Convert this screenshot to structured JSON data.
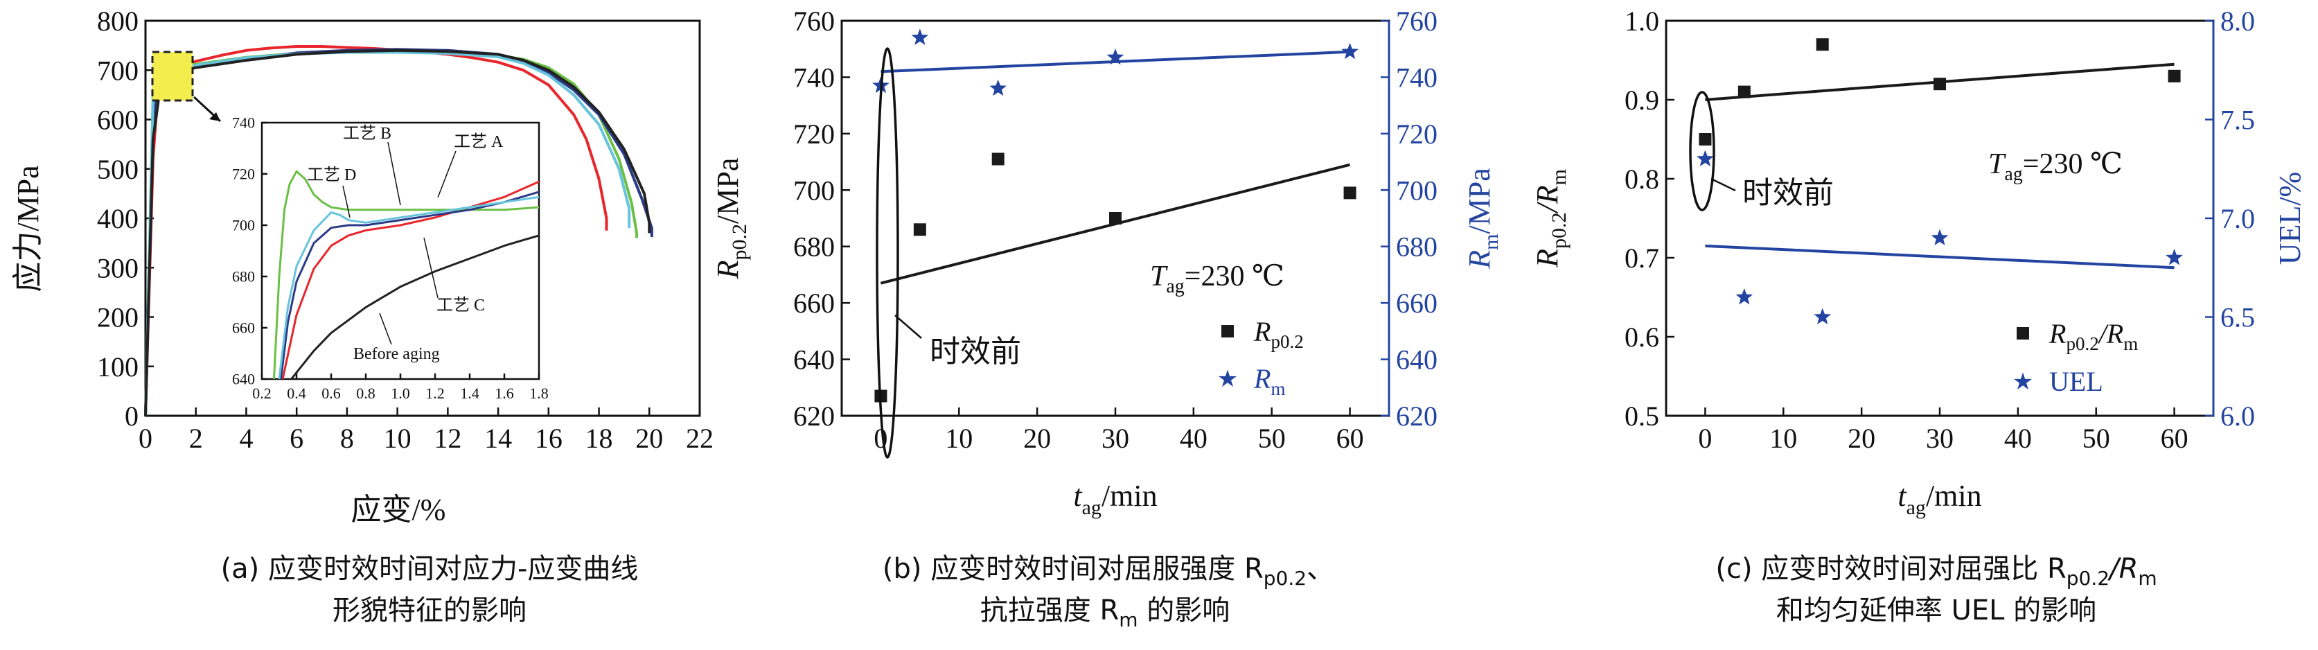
{
  "colors": {
    "black": "#1a1a1a",
    "blue": "#2344a0",
    "highlight": "#f3ee4e",
    "process_A": "#e8262b",
    "process_B": "#6bbf45",
    "process_C": "#2b3a86",
    "process_D": "#66c4dc",
    "before_aging": "#222222"
  },
  "chart_data": [
    {
      "id": "a",
      "type": "line",
      "xlabel": "应变/%",
      "ylabel": "应力/MPa",
      "xlim": [
        0,
        22
      ],
      "ylim": [
        0,
        800
      ],
      "xticks": [
        "0",
        "2",
        "4",
        "6",
        "8",
        "10",
        "12",
        "14",
        "16",
        "18",
        "20",
        "22"
      ],
      "yticks": [
        "0",
        "100",
        "200",
        "300",
        "400",
        "500",
        "600",
        "700",
        "800"
      ],
      "caption_line1": "(a) 应变时效时间对应力-应变曲线",
      "caption_line2": "形貌特征的影响",
      "series": [
        {
          "name": "工艺 A",
          "color_key": "process_A",
          "x": [
            0,
            0.3,
            0.5,
            0.8,
            1.2,
            2,
            3,
            4,
            5,
            6,
            7,
            8,
            9,
            10,
            11,
            12,
            13,
            14,
            15,
            16,
            17,
            17.5,
            18,
            18.3,
            18.3
          ],
          "y": [
            0,
            520,
            660,
            700,
            706,
            718,
            730,
            740,
            745,
            748,
            748,
            746,
            744,
            741,
            737,
            732,
            725,
            716,
            700,
            670,
            610,
            560,
            480,
            400,
            375
          ]
        },
        {
          "name": "工艺 B",
          "color_key": "process_B",
          "x": [
            0,
            0.3,
            0.4,
            0.5,
            0.7,
            1,
            2,
            4,
            6,
            8,
            10,
            12,
            14,
            15,
            16,
            17,
            18,
            18.8,
            19.3,
            19.5,
            19.5
          ],
          "y": [
            0,
            650,
            720,
            712,
            706,
            705,
            712,
            726,
            734,
            737,
            737,
            735,
            730,
            722,
            705,
            672,
            610,
            520,
            430,
            370,
            360
          ]
        },
        {
          "name": "工艺 C",
          "color_key": "process_C",
          "x": [
            0,
            0.3,
            0.6,
            1,
            2,
            4,
            6,
            8,
            10,
            12,
            14,
            15,
            16,
            17,
            18,
            19,
            19.7,
            20.1,
            20.1
          ],
          "y": [
            0,
            600,
            688,
            700,
            708,
            722,
            735,
            740,
            742,
            740,
            732,
            718,
            695,
            660,
            610,
            530,
            440,
            380,
            362
          ]
        },
        {
          "name": "工艺 D",
          "color_key": "process_D",
          "x": [
            0,
            0.3,
            0.6,
            0.8,
            1,
            2,
            4,
            6,
            8,
            10,
            12,
            14,
            15,
            16,
            17,
            18,
            18.8,
            19.2,
            19.2
          ],
          "y": [
            0,
            640,
            705,
            701,
            701,
            710,
            725,
            733,
            736,
            736,
            734,
            727,
            714,
            690,
            650,
            590,
            500,
            420,
            380
          ]
        },
        {
          "name": "Before aging",
          "color_key": "before_aging",
          "x": [
            0,
            0.3,
            0.6,
            1,
            2,
            4,
            6,
            8,
            10,
            12,
            14,
            15,
            16,
            17,
            18,
            19,
            19.8,
            20,
            20
          ],
          "y": [
            0,
            560,
            670,
            695,
            705,
            720,
            732,
            738,
            740,
            738,
            732,
            720,
            700,
            666,
            615,
            540,
            450,
            390,
            370
          ]
        }
      ],
      "inset": {
        "xlim": [
          0.2,
          1.8
        ],
        "ylim": [
          640,
          740
        ],
        "xticks": [
          "0.2",
          "0.4",
          "0.6",
          "0.8",
          "1.0",
          "1.2",
          "1.4",
          "1.6",
          "1.8"
        ],
        "yticks": [
          "640",
          "660",
          "680",
          "700",
          "720",
          "740"
        ],
        "labels": [
          "工艺 B",
          "工艺 A",
          "工艺 D",
          "工艺 C",
          "Before aging"
        ],
        "series": [
          {
            "name": "工艺 A",
            "color_key": "process_A",
            "x": [
              0.32,
              0.4,
              0.5,
              0.6,
              0.7,
              0.8,
              1.0,
              1.2,
              1.4,
              1.6,
              1.8
            ],
            "y": [
              640,
              665,
              683,
              692,
              696,
              698,
              700,
              703,
              707,
              711,
              717
            ]
          },
          {
            "name": "工艺 B",
            "color_key": "process_B",
            "x": [
              0.27,
              0.3,
              0.33,
              0.36,
              0.4,
              0.45,
              0.5,
              0.55,
              0.6,
              0.7,
              0.8,
              1.0,
              1.2,
              1.4,
              1.6,
              1.8
            ],
            "y": [
              640,
              680,
              706,
              716,
              721,
              718,
              712,
              709,
              707,
              706,
              706,
              706,
              706,
              706,
              706,
              707
            ]
          },
          {
            "name": "工艺 C",
            "color_key": "process_C",
            "x": [
              0.31,
              0.35,
              0.4,
              0.5,
              0.6,
              0.7,
              0.8,
              1.0,
              1.2,
              1.4,
              1.6,
              1.8
            ],
            "y": [
              640,
              662,
              678,
              693,
              699,
              700,
              700,
              702,
              704,
              706,
              709,
              713
            ]
          },
          {
            "name": "工艺 D",
            "color_key": "process_D",
            "x": [
              0.3,
              0.35,
              0.4,
              0.5,
              0.6,
              0.65,
              0.7,
              0.8,
              1.0,
              1.2,
              1.4,
              1.6,
              1.8
            ],
            "y": [
              640,
              668,
              684,
              698,
              705,
              704,
              702,
              701,
              703,
              705,
              707,
              709,
              711
            ]
          },
          {
            "name": "Before aging",
            "color_key": "before_aging",
            "x": [
              0.37,
              0.5,
              0.6,
              0.8,
              1.0,
              1.2,
              1.4,
              1.6,
              1.8
            ],
            "y": [
              640,
              651,
              658,
              668,
              676,
              682,
              687,
              692,
              696
            ]
          }
        ]
      }
    },
    {
      "id": "b",
      "type": "scatter",
      "xlabel_main": "t",
      "xlabel_sub": "ag",
      "xlabel_tail": "/min",
      "ylabel_main": "R",
      "ylabel_sub": "p0.2",
      "ylabel_tail": "/MPa",
      "y2label_main": "R",
      "y2label_sub": "m",
      "y2label_tail": "/MPa",
      "xlim": [
        -5,
        65
      ],
      "ylim": [
        620,
        760
      ],
      "y2lim": [
        620,
        760
      ],
      "xticks": [
        "0",
        "10",
        "20",
        "30",
        "40",
        "50",
        "60"
      ],
      "yticks": [
        "620",
        "640",
        "660",
        "680",
        "700",
        "720",
        "740",
        "760"
      ],
      "y2ticks": [
        "620",
        "640",
        "660",
        "680",
        "700",
        "720",
        "740",
        "760"
      ],
      "temp_main": "T",
      "temp_sub": "ag",
      "temp_tail": "=230 ℃",
      "annotation": "时效前",
      "legend_a_main": "R",
      "legend_a_sub": "p0.2",
      "legend_b_main": "R",
      "legend_b_sub": "m",
      "caption_line1": "(b) 应变时效时间对屈服强度 R",
      "caption_sub1": "p0.2",
      "caption_tail1": "、",
      "caption_line2": "抗拉强度 R",
      "caption_sub2": "m",
      "caption_tail2": " 的影响",
      "series": [
        {
          "name": "Rp0.2",
          "marker": "square",
          "color_key": "black",
          "x": [
            0,
            5,
            15,
            30,
            60
          ],
          "y": [
            627,
            686,
            711,
            690,
            699
          ],
          "fit": [
            [
              0,
              667
            ],
            [
              60,
              709
            ]
          ]
        },
        {
          "name": "Rm",
          "marker": "star",
          "color_key": "blue",
          "x": [
            0,
            5,
            15,
            30,
            60
          ],
          "y": [
            737,
            754,
            736,
            747,
            749
          ],
          "fit": [
            [
              0,
              742
            ],
            [
              60,
              749
            ]
          ]
        }
      ]
    },
    {
      "id": "c",
      "type": "scatter",
      "xlabel_main": "t",
      "xlabel_sub": "ag",
      "xlabel_tail": "/min",
      "ylabel_main": "R",
      "ylabel_sub": "p0.2",
      "ylabel_mid": "/R",
      "ylabel_sub2": "m",
      "y2label": "UEL/%",
      "xlim": [
        -5,
        65
      ],
      "ylim": [
        0.5,
        1.0
      ],
      "y2lim": [
        6.0,
        8.0
      ],
      "xticks": [
        "0",
        "10",
        "20",
        "30",
        "40",
        "50",
        "60"
      ],
      "yticks": [
        "0.5",
        "0.6",
        "0.7",
        "0.8",
        "0.9",
        "1.0"
      ],
      "y2ticks": [
        "6.0",
        "6.5",
        "7.0",
        "7.5",
        "8.0"
      ],
      "temp_main": "T",
      "temp_sub": "ag",
      "temp_tail": "=230 ℃",
      "annotation": "时效前",
      "legend_a_main": "R",
      "legend_a_sub": "p0.2",
      "legend_a_mid": "/R",
      "legend_a_sub2": "m",
      "legend_b": "UEL",
      "caption_line1": "(c) 应变时效时间对屈强比 R",
      "caption_sub1": "p0.2",
      "caption_mid1": "/R",
      "caption_sub1b": "m",
      "caption_line2": "和均匀延伸率 UEL 的影响",
      "series": [
        {
          "name": "Rp0.2/Rm",
          "marker": "square",
          "color_key": "black",
          "axis": "left",
          "x": [
            0,
            5,
            15,
            30,
            60
          ],
          "y": [
            0.85,
            0.91,
            0.97,
            0.92,
            0.93
          ],
          "fit": [
            [
              0,
              0.9
            ],
            [
              60,
              0.945
            ]
          ]
        },
        {
          "name": "UEL",
          "marker": "star",
          "color_key": "blue",
          "axis": "right",
          "x": [
            0,
            5,
            15,
            30,
            60
          ],
          "y": [
            7.3,
            6.6,
            6.5,
            6.9,
            6.8
          ],
          "fit": [
            [
              0,
              6.86
            ],
            [
              60,
              6.75
            ]
          ]
        }
      ]
    }
  ]
}
